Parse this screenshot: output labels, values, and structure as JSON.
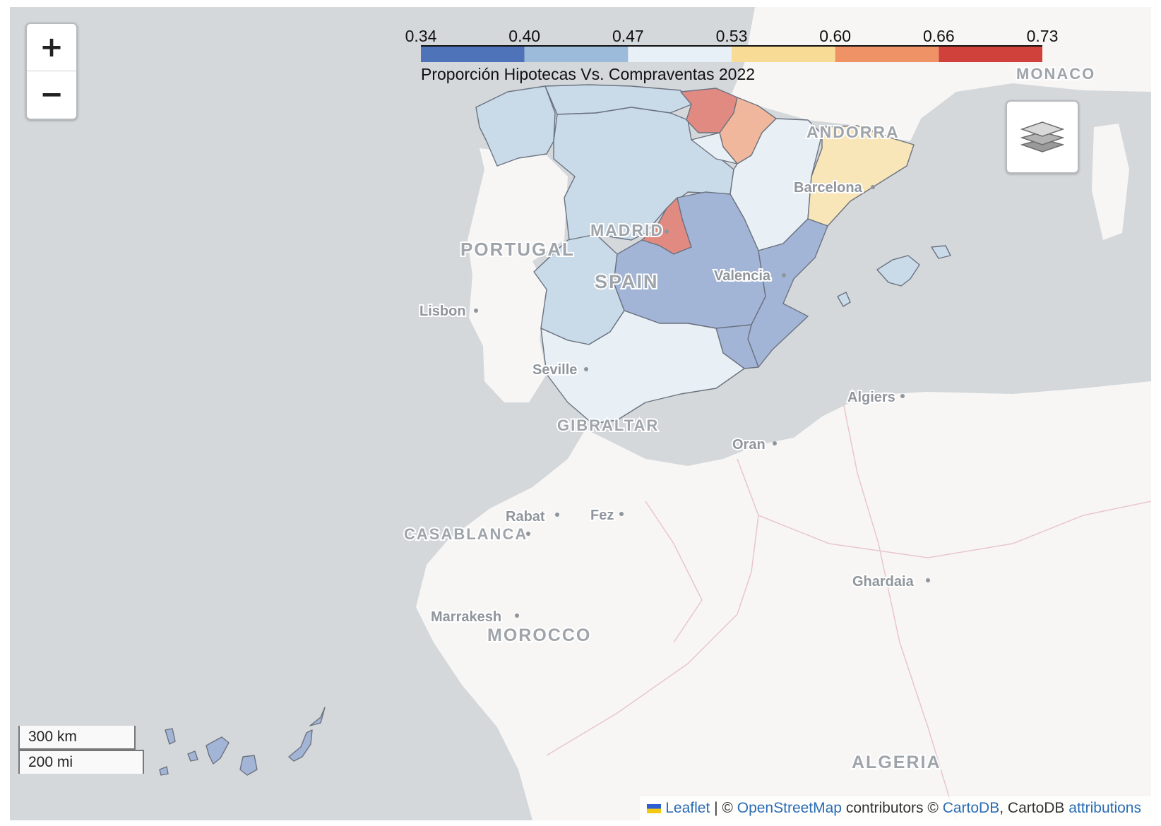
{
  "map": {
    "zoom_in": "+",
    "zoom_out": "−",
    "layers_icon": "layers-icon",
    "legend": {
      "ticks": [
        "0.34",
        "0.40",
        "0.47",
        "0.53",
        "0.60",
        "0.66",
        "0.73"
      ],
      "colors": [
        "#4e73b8",
        "#9cbbda",
        "#e6f0f6",
        "#f8dc96",
        "#ef9266",
        "#d0413b"
      ],
      "caption": "Proporción Hipotecas Vs. Compraventas 2022"
    },
    "labels": {
      "monaco": "MONACO",
      "andorra": "ANDORRA",
      "barcelona": "Barcelona",
      "madrid": "MADRID",
      "portugal": "PORTUGAL",
      "spain": "SPAIN",
      "valencia": "Valencia",
      "lisbon": "Lisbon",
      "seville": "Seville",
      "gibraltar": "GIBRALTAR",
      "algiers": "Algiers",
      "oran": "Oran",
      "rabat": "Rabat",
      "fez": "Fez",
      "casablanca": "CASABLANCA",
      "ghardaia": "Ghardaia",
      "marrakesh": "Marrakesh",
      "morocco": "MOROCCO",
      "algeria": "ALGERIA"
    },
    "scale": {
      "km": "300 km",
      "mi": "200 mi"
    },
    "attribution": {
      "leaflet": "Leaflet",
      "sep1": " | © ",
      "osm": "OpenStreetMap",
      "mid": " contributors © ",
      "cartodb": "CartoDB",
      "mid2": ", CartoDB ",
      "attributions": "attributions"
    },
    "colors": {
      "sea": "#d4d8db",
      "land": "#f7f6f5",
      "very_low": "#a3b5d7",
      "low": "#c9dae9",
      "mid_low": "#e8f0f5",
      "mid_high": "#f8e6b8",
      "high": "#f1b79c",
      "very_high": "#e18a82"
    }
  }
}
